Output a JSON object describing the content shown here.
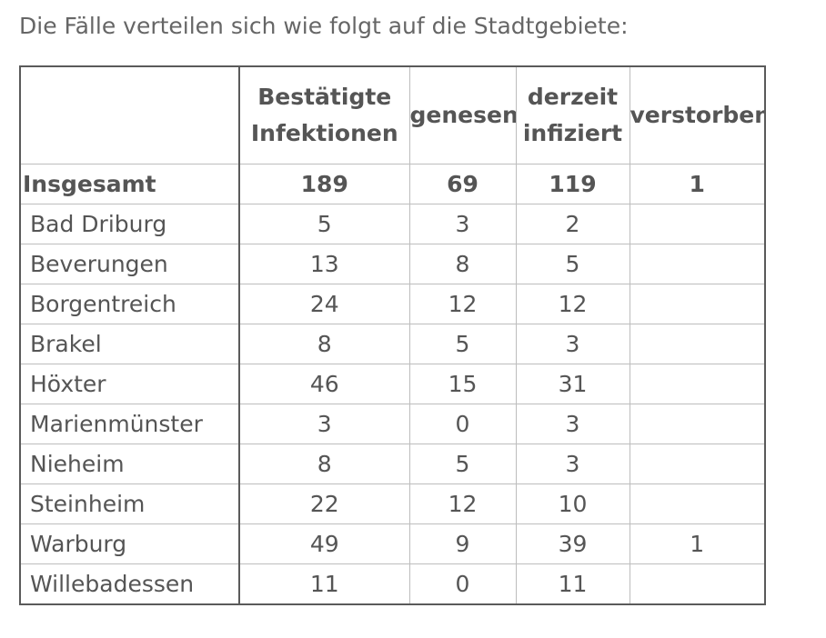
{
  "intro_text": "Die Fälle verteilen sich wie folgt auf die Stadtgebiete:",
  "table": {
    "headers": {
      "corner": "",
      "confirmed": [
        "Bestätigte",
        "Infektionen"
      ],
      "recovered": [
        "genesen"
      ],
      "infected": [
        "derzeit",
        "infiziert"
      ],
      "deceased": [
        "verstorben"
      ]
    },
    "total": {
      "name": "Insgesamt",
      "confirmed": "189",
      "recovered": "69",
      "infected": "119",
      "deceased": "1"
    },
    "rows": [
      {
        "name": "Bad Driburg",
        "confirmed": "5",
        "recovered": "3",
        "infected": "2",
        "deceased": ""
      },
      {
        "name": "Beverungen",
        "confirmed": "13",
        "recovered": "8",
        "infected": "5",
        "deceased": ""
      },
      {
        "name": "Borgentreich",
        "confirmed": "24",
        "recovered": "12",
        "infected": "12",
        "deceased": ""
      },
      {
        "name": "Brakel",
        "confirmed": "8",
        "recovered": "5",
        "infected": "3",
        "deceased": ""
      },
      {
        "name": "Höxter",
        "confirmed": "46",
        "recovered": "15",
        "infected": "31",
        "deceased": ""
      },
      {
        "name": "Marienmünster",
        "confirmed": "3",
        "recovered": "0",
        "infected": "3",
        "deceased": ""
      },
      {
        "name": "Nieheim",
        "confirmed": "8",
        "recovered": "5",
        "infected": "3",
        "deceased": ""
      },
      {
        "name": "Steinheim",
        "confirmed": "22",
        "recovered": "12",
        "infected": "10",
        "deceased": ""
      },
      {
        "name": "Warburg",
        "confirmed": "49",
        "recovered": "9",
        "infected": "39",
        "deceased": "1"
      },
      {
        "name": "Willebadessen",
        "confirmed": "11",
        "recovered": "0",
        "infected": "11",
        "deceased": ""
      }
    ]
  }
}
